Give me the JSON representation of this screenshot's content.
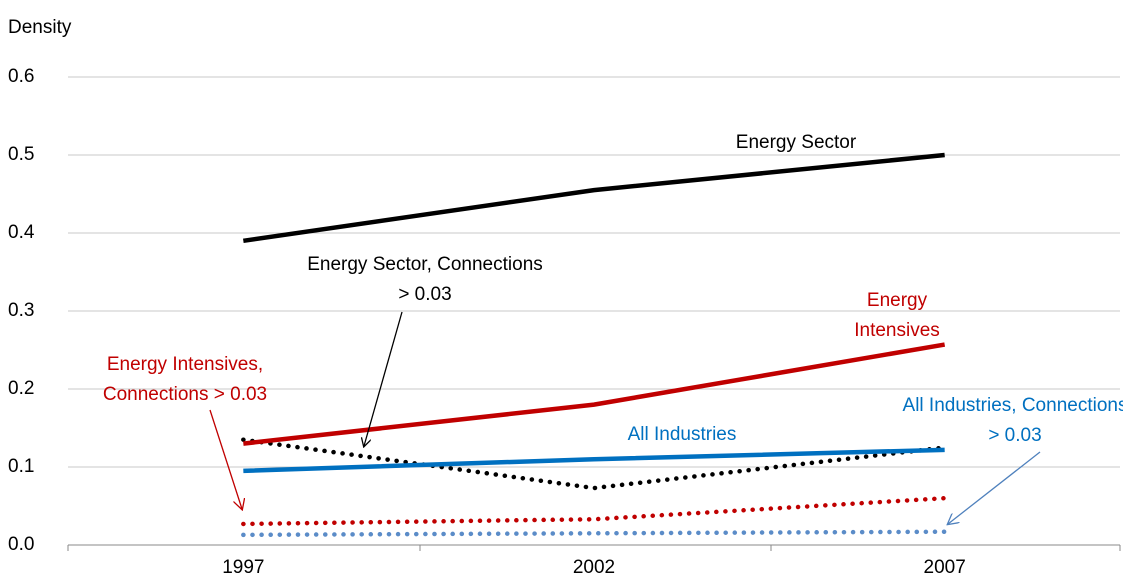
{
  "chart_data": {
    "type": "line",
    "y_label": "Density",
    "categories": [
      "1997",
      "2002",
      "2007"
    ],
    "ylim": [
      0,
      0.6
    ],
    "yticks": [
      {
        "value": 0,
        "label": "0.0"
      },
      0.1,
      0.2,
      0.3,
      0.4,
      0.5,
      0.6
    ],
    "grid": true,
    "series": [
      {
        "name": "Energy Sector",
        "color": "#000000",
        "label_color": "#000000",
        "style": "solid",
        "values": [
          0.39,
          0.455,
          0.5
        ]
      },
      {
        "name": "Energy Sector, Connections > 0.03",
        "color": "#000000",
        "label_color": "#000000",
        "style": "dotted",
        "values": [
          0.135,
          0.073,
          0.125
        ]
      },
      {
        "name": "Energy Intensives",
        "color": "#c00000",
        "label_color": "#c00000",
        "style": "solid",
        "values": [
          0.13,
          0.18,
          0.257
        ]
      },
      {
        "name": "Energy Intensives, Connections > 0.03",
        "color": "#c00000",
        "label_color": "#c00000",
        "style": "dotted",
        "values": [
          0.027,
          0.033,
          0.06
        ]
      },
      {
        "name": "All Industries",
        "color": "#0070c0",
        "label_color": "#0070c0",
        "style": "solid",
        "values": [
          0.095,
          0.11,
          0.122
        ]
      },
      {
        "name": "All Industries, Connections > 0.03",
        "color": "#5b8cc8",
        "label_color": "#0070c0",
        "style": "dotted",
        "values": [
          0.013,
          0.015,
          0.017
        ]
      }
    ]
  }
}
